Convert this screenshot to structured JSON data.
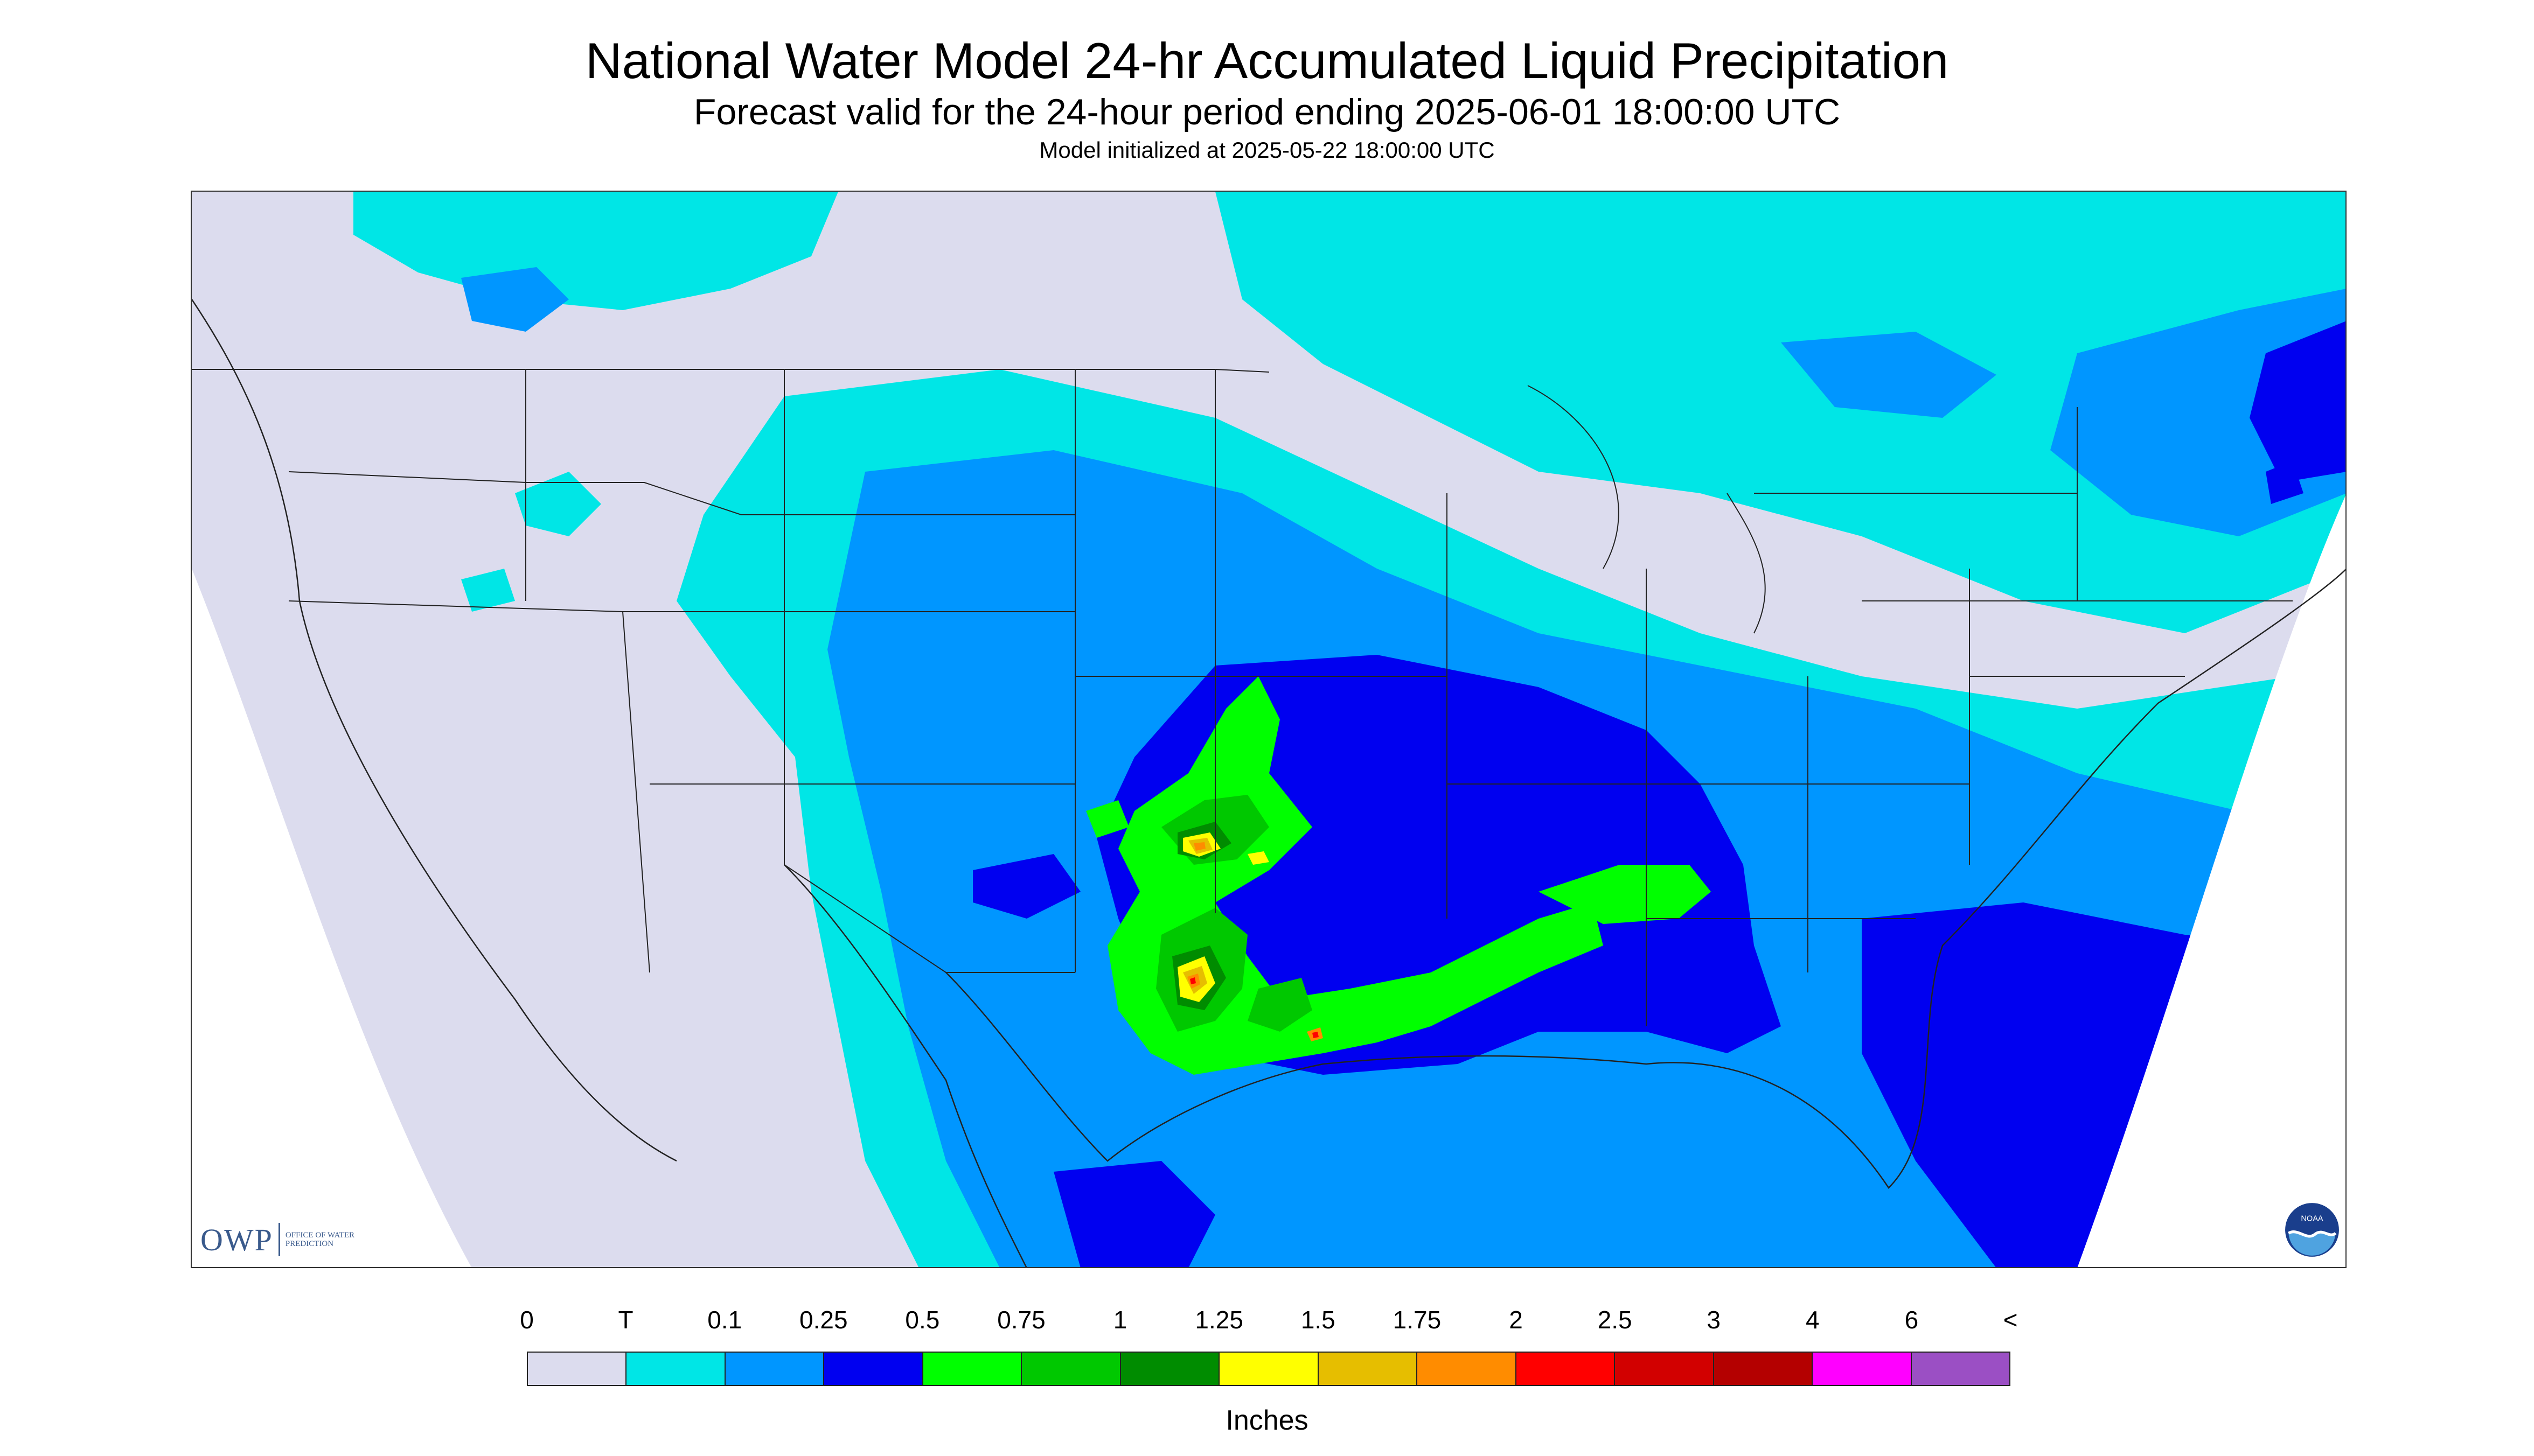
{
  "title": "National Water Model 24-hr Accumulated Liquid Precipitation",
  "subtitle": "Forecast valid for the 24-hour period ending 2025-06-01 18:00:00 UTC",
  "subsubtitle": "Model initialized at 2025-05-22 18:00:00 UTC",
  "logos": {
    "owp_text": "OWP",
    "owp_subtext": "OFFICE OF WATER PREDICTION",
    "noaa_text": "NOAA"
  },
  "legend": {
    "unit": "Inches",
    "labels": [
      "0",
      "T",
      "0.1",
      "0.25",
      "0.5",
      "0.75",
      "1",
      "1.25",
      "1.5",
      "1.75",
      "2",
      "2.5",
      "3",
      "4",
      "6",
      "<"
    ],
    "colors": [
      "#dcdcee",
      "#00e6e6",
      "#0096ff",
      "#0000f0",
      "#00ff00",
      "#00c800",
      "#008c00",
      "#ffff00",
      "#e6be00",
      "#ff8c00",
      "#ff0000",
      "#d20000",
      "#b40000",
      "#ff00ff",
      "#9b4fc4"
    ]
  },
  "map_colors": {
    "background": "#dcdcee",
    "trace": "#00e6e6",
    "p01": "#0096ff",
    "p025": "#0000f0",
    "p05": "#00ff00",
    "p075": "#00c800",
    "p1": "#008c00",
    "p125": "#ffff00",
    "p15": "#e6be00",
    "p175": "#ff8c00",
    "p2": "#ff0000",
    "boundary": "#222222"
  }
}
